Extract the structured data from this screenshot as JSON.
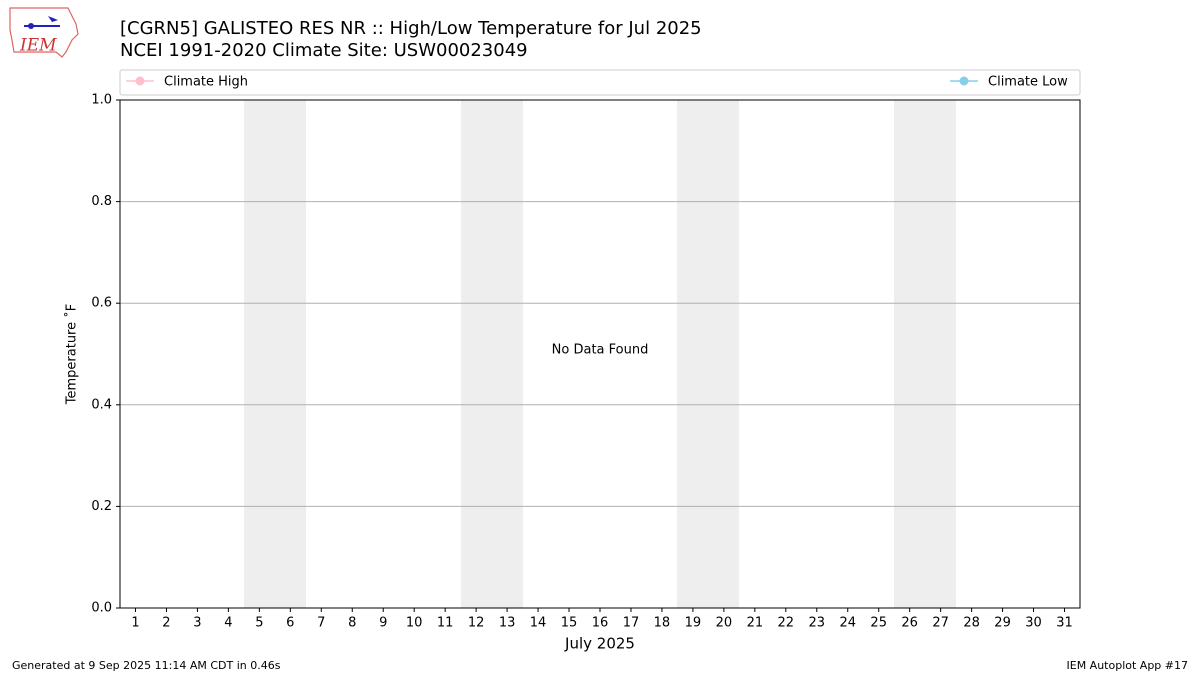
{
  "chart_data": {
    "type": "line",
    "title": "[CGRN5] GALISTEO RES NR :: High/Low Temperature for Jul 2025",
    "subtitle": "NCEI 1991-2020 Climate Site: USW00023049",
    "xlabel": "July 2025",
    "ylabel": "Temperature $^\\circ$F",
    "annotation": "No Data Found",
    "categories": [
      "1",
      "2",
      "3",
      "4",
      "5",
      "6",
      "7",
      "8",
      "9",
      "10",
      "11",
      "12",
      "13",
      "14",
      "15",
      "16",
      "17",
      "18",
      "19",
      "20",
      "21",
      "22",
      "23",
      "24",
      "25",
      "26",
      "27",
      "28",
      "29",
      "30",
      "31"
    ],
    "series": [
      {
        "name": "Climate High",
        "color": "pink",
        "values": [
          null,
          null,
          null,
          null,
          null,
          null,
          null,
          null,
          null,
          null,
          null,
          null,
          null,
          null,
          null,
          null,
          null,
          null,
          null,
          null,
          null,
          null,
          null,
          null,
          null,
          null,
          null,
          null,
          null,
          null,
          null
        ]
      },
      {
        "name": "Climate Low",
        "color": "skyblue",
        "values": [
          null,
          null,
          null,
          null,
          null,
          null,
          null,
          null,
          null,
          null,
          null,
          null,
          null,
          null,
          null,
          null,
          null,
          null,
          null,
          null,
          null,
          null,
          null,
          null,
          null,
          null,
          null,
          null,
          null,
          null,
          null
        ]
      }
    ],
    "ylim": [
      0,
      1
    ],
    "yticks": [
      {
        "value": 0,
        "label": "0.0"
      },
      0.2,
      0.4,
      0.6,
      0.8,
      {
        "value": 1,
        "label": "1.0"
      }
    ],
    "grid": true
  },
  "footer_left": "Generated at 9 Sep 2025 11:14 AM CDT in 0.46s",
  "footer_right": "IEM Autoplot App #17",
  "logo_text": "IEM"
}
